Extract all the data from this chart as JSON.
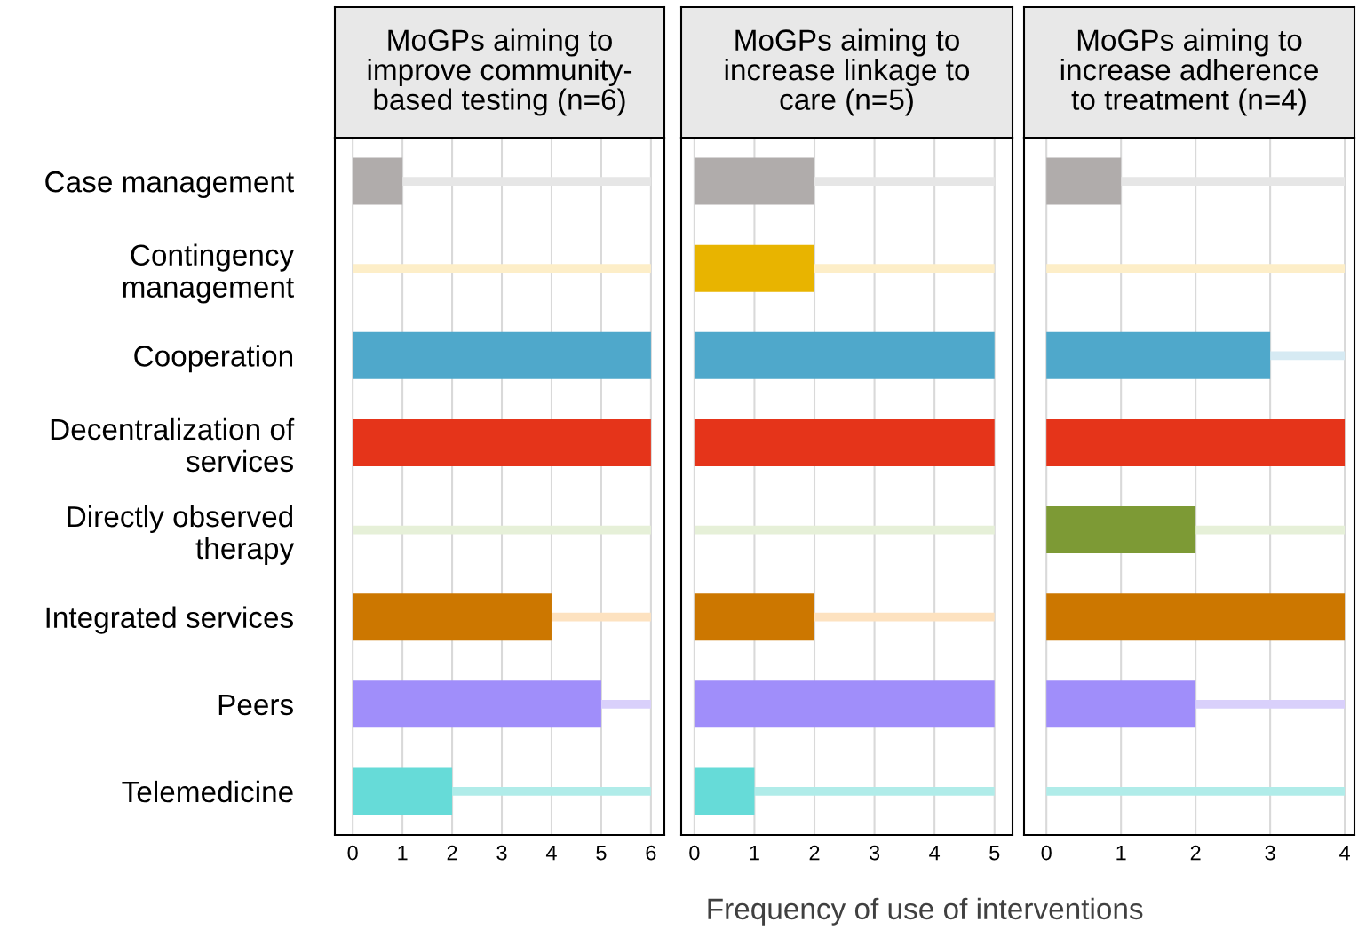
{
  "chart_data": [
    {
      "type": "bar",
      "orientation": "horizontal",
      "stacked": true,
      "title": "MoGPs aiming to\nimprove community-\nbased testing (n=6)",
      "categories": [
        "Case management",
        "Contingency\nmanagement",
        "Cooperation",
        "Decentralization of\nservices",
        "Directly observed\ntherapy",
        "Integrated services",
        "Peers",
        "Telemedicine"
      ],
      "series": [
        {
          "colors": [
            "#b0acab",
            "#e8b400",
            "#4fa8cb",
            "#e5341a",
            "#7d9a35",
            "#cc7700",
            "#a08efa",
            "#66dbd8"
          ],
          "values": [
            1,
            0,
            6,
            6,
            0,
            4,
            5,
            2
          ]
        },
        {
          "colors": [
            "#e6e6e6",
            "#fdeec8",
            "#d6eaf3",
            "#f9d3cc",
            "#e6f0d8",
            "#fde2c0",
            "#d9d0fb",
            "#b0ece9"
          ],
          "values": [
            5,
            6,
            0,
            0,
            6,
            2,
            1,
            4
          ]
        }
      ],
      "xlim": [
        -0.36,
        6.27
      ],
      "xticks": [
        0,
        1,
        2,
        3,
        4,
        5,
        6
      ],
      "grid": "x"
    },
    {
      "type": "bar",
      "orientation": "horizontal",
      "stacked": true,
      "title": "MoGPs aiming to\nincrease linkage to\ncare (n=5)",
      "xlabel": "Frequency of use of interventions",
      "categories": [
        null,
        null,
        null,
        null,
        null,
        null,
        null,
        null
      ],
      "series": [
        {
          "colors": [
            "#b0acab",
            "#e8b400",
            "#4fa8cb",
            "#e5341a",
            "#7d9a35",
            "#cc7700",
            "#a08efa",
            "#66dbd8"
          ],
          "values": [
            2,
            2,
            5,
            5,
            0,
            2,
            5,
            1
          ]
        },
        {
          "colors": [
            "#e6e6e6",
            "#fdeec8",
            "#d6eaf3",
            "#f9d3cc",
            "#e6f0d8",
            "#fde2c0",
            "#d9d0fb",
            "#b0ece9"
          ],
          "values": [
            3,
            3,
            0,
            0,
            5,
            3,
            0,
            4
          ]
        }
      ],
      "xlim": [
        -0.22,
        5.3
      ],
      "xticks": [
        0,
        1,
        2,
        3,
        4,
        5
      ],
      "grid": "x",
      "tick_labels": "x"
    },
    {
      "type": "bar",
      "orientation": "horizontal",
      "stacked": true,
      "title": "MoGPs aiming to\nincrease adherence\nto treatment (n=4)",
      "categories": [
        null,
        null,
        null,
        null,
        null,
        null,
        null,
        null
      ],
      "series": [
        {
          "colors": [
            "#b0acab",
            "#e8b400",
            "#4fa8cb",
            "#e5341a",
            "#7d9a35",
            "#cc7700",
            "#a08efa",
            "#66dbd8"
          ],
          "values": [
            1,
            0,
            3,
            4,
            2,
            4,
            2,
            0
          ]
        },
        {
          "colors": [
            "#e6e6e6",
            "#fdeec8",
            "#d6eaf3",
            "#f9d3cc",
            "#e6f0d8",
            "#fde2c0",
            "#d9d0fb",
            "#b0ece9"
          ],
          "values": [
            3,
            4,
            1,
            0,
            2,
            0,
            2,
            4
          ]
        }
      ],
      "xlim": [
        -0.3,
        4.13
      ],
      "xticks": [
        0,
        1,
        2,
        3,
        4
      ],
      "grid": "x",
      "tick_labels": "x"
    }
  ]
}
